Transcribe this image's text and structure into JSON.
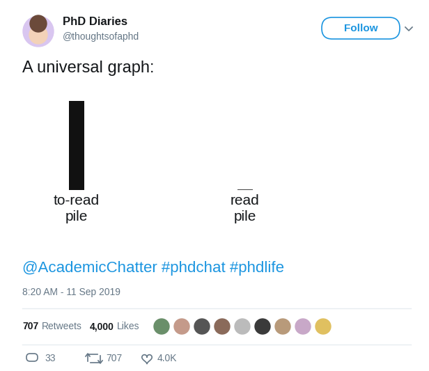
{
  "header": {
    "name": "PhD Diaries",
    "handle": "@thoughtsofaphd",
    "button": "Follow"
  },
  "text": "A universal graph:",
  "chart_data": {
    "type": "bar",
    "categories": [
      "to-read\npile",
      "read\npile"
    ],
    "values": [
      100,
      1
    ],
    "colors": [
      "#111111",
      "#444444"
    ],
    "ylim": [
      0,
      100
    ],
    "tick_labels": "x"
  },
  "tags": "@AcademicChatter #phdchat #phdlife",
  "timestamp": "8:20 AM - 11 Sep 2019",
  "stats": [
    {
      "count": "707",
      "label": "Retweets"
    },
    {
      "count": "4,000",
      "label": "Likes"
    }
  ],
  "actions": {
    "replies": "33",
    "retweets": "707",
    "likes": "4.0K"
  }
}
